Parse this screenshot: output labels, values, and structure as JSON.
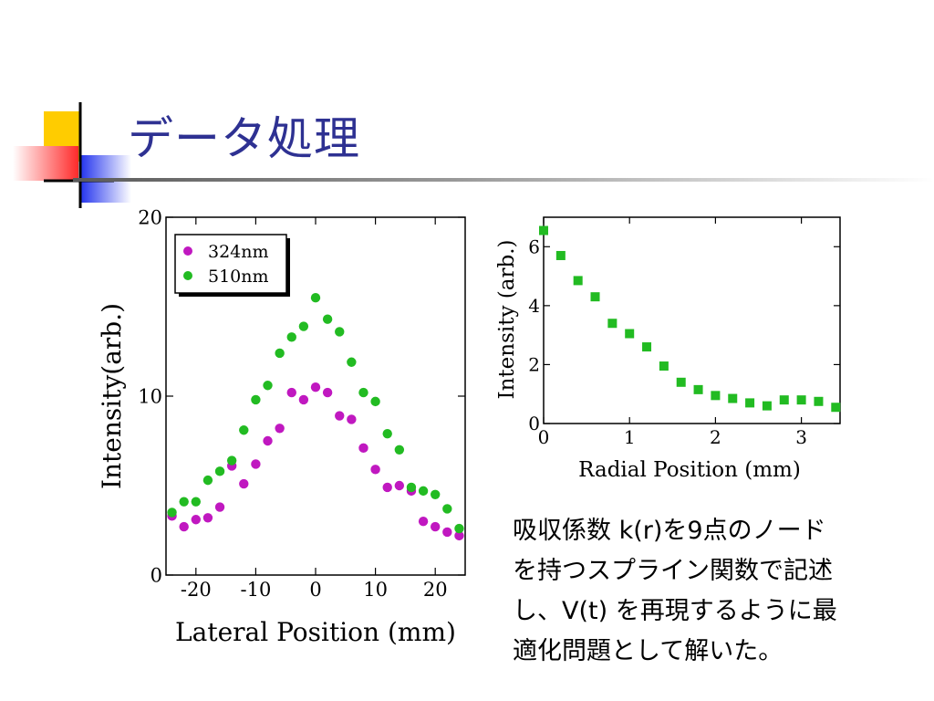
{
  "slide": {
    "title": "データ処理",
    "description_lines": [
      "吸収係数 k(r)を9点のノード",
      "を持つスプライン関数で記述",
      "し、V(t) を再現するように最",
      "適化問題として解いた。"
    ],
    "colors": {
      "title": "#2e3192",
      "accent_yellow": "#ffcc00",
      "accent_red": "#ff3b3b",
      "accent_blue": "#2233ee"
    }
  },
  "chart_data": [
    {
      "type": "scatter",
      "xlabel": "Lateral Position (mm)",
      "ylabel": "Intensity(arb.)",
      "xlim": [
        -25,
        25
      ],
      "ylim": [
        0,
        20
      ],
      "xticks": [
        -20,
        -10,
        0,
        10,
        20
      ],
      "yticks": [
        0,
        10,
        20
      ],
      "legend": "top-left",
      "grid": false,
      "series": [
        {
          "name": "324nm",
          "color": "#c018c0",
          "marker": "circle",
          "x": [
            -24,
            -22,
            -20,
            -18,
            -16,
            -14,
            -12,
            -10,
            -8,
            -6,
            -4,
            -2,
            0,
            2,
            4,
            6,
            8,
            10,
            12,
            14,
            16,
            18,
            20,
            22,
            24
          ],
          "y": [
            3.3,
            2.7,
            3.1,
            3.2,
            3.8,
            6.1,
            5.1,
            6.2,
            7.5,
            8.2,
            10.2,
            9.8,
            10.5,
            10.2,
            8.9,
            8.7,
            7.1,
            5.9,
            4.9,
            5.0,
            4.7,
            3.0,
            2.7,
            2.4,
            2.2
          ]
        },
        {
          "name": "510nm",
          "color": "#22bb22",
          "marker": "circle",
          "x": [
            -24,
            -22,
            -20,
            -18,
            -16,
            -14,
            -12,
            -10,
            -8,
            -6,
            -4,
            -2,
            0,
            2,
            4,
            6,
            8,
            10,
            12,
            14,
            16,
            18,
            20,
            22,
            24
          ],
          "y": [
            3.5,
            4.1,
            4.1,
            5.3,
            5.8,
            6.4,
            8.1,
            9.8,
            10.6,
            12.4,
            13.3,
            13.9,
            15.5,
            14.3,
            13.6,
            11.9,
            10.2,
            9.7,
            7.9,
            7.0,
            4.9,
            4.7,
            4.5,
            3.7,
            2.6
          ]
        }
      ]
    },
    {
      "type": "scatter",
      "xlabel": "Radial Position (mm)",
      "ylabel": "Intensity (arb.)",
      "xlim": [
        0,
        3.45
      ],
      "ylim": [
        0,
        7
      ],
      "xticks": [
        0,
        1,
        2,
        3
      ],
      "yticks": [
        0,
        2,
        4,
        6
      ],
      "grid": false,
      "series": [
        {
          "color": "#22bb22",
          "marker": "square",
          "x": [
            0,
            0.2,
            0.4,
            0.6,
            0.8,
            1.0,
            1.2,
            1.4,
            1.6,
            1.8,
            2.0,
            2.2,
            2.4,
            2.6,
            2.8,
            3.0,
            3.2,
            3.4
          ],
          "y": [
            6.55,
            5.7,
            4.85,
            4.3,
            3.4,
            3.05,
            2.6,
            1.95,
            1.4,
            1.15,
            0.95,
            0.85,
            0.7,
            0.6,
            0.8,
            0.8,
            0.75,
            0.55
          ]
        }
      ]
    }
  ]
}
